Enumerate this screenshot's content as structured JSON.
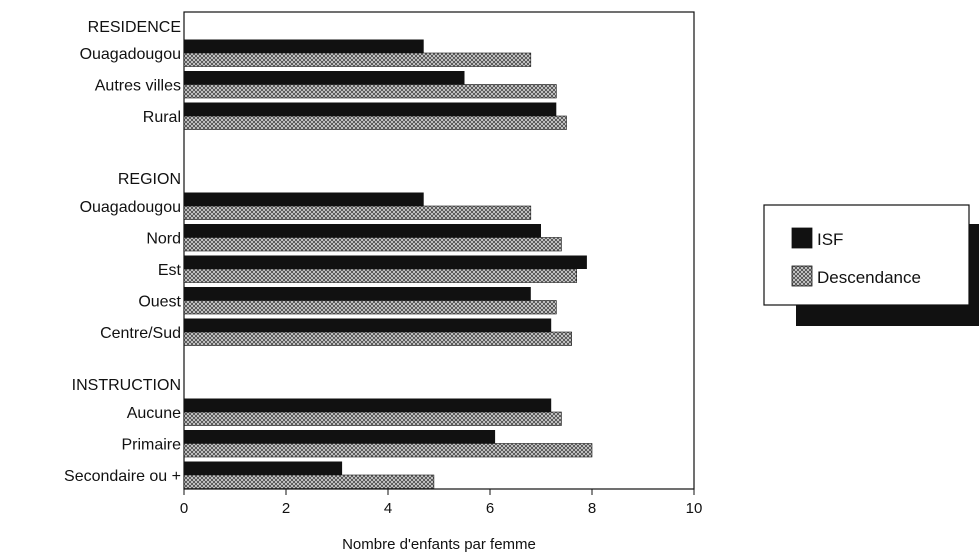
{
  "chart_data": {
    "type": "bar",
    "orientation": "horizontal",
    "title": "",
    "xlabel": "Nombre d'enfants par femme",
    "ylabel": "",
    "xlim": [
      0,
      10
    ],
    "xticks": [
      0,
      2,
      4,
      6,
      8,
      10
    ],
    "grid": false,
    "legend_position": "right",
    "groups": [
      {
        "label": "RESIDENCE",
        "categories": [
          "Ouagadougou",
          "Autres villes",
          "Rural"
        ]
      },
      {
        "label": "REGION",
        "categories": [
          "Ouagadougou",
          "Nord",
          "Est",
          "Ouest",
          "Centre/Sud"
        ]
      },
      {
        "label": "INSTRUCTION",
        "categories": [
          "Aucune",
          "Primaire",
          "Secondaire ou +"
        ]
      }
    ],
    "series": [
      {
        "name": "ISF",
        "color": "#111111",
        "pattern": "solid",
        "values": [
          4.7,
          5.5,
          7.3,
          4.7,
          7.0,
          7.9,
          6.8,
          7.2,
          7.2,
          6.1,
          3.1
        ]
      },
      {
        "name": "Descendance",
        "color": "#9a9a9a",
        "pattern": "crosshatch",
        "values": [
          6.8,
          7.3,
          7.5,
          6.8,
          7.4,
          7.7,
          7.3,
          7.6,
          7.4,
          8.0,
          4.9
        ]
      }
    ]
  }
}
